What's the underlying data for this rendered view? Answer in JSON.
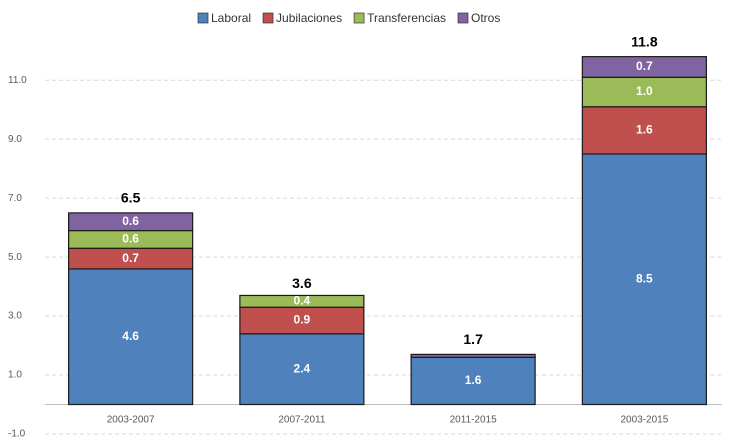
{
  "chart_data": {
    "type": "stacked-bar",
    "categories": [
      "2003-2007",
      "2007-2011",
      "2011-2015",
      "2003-2015"
    ],
    "series": [
      {
        "name": "Laboral",
        "color": "#4f81bd",
        "values": [
          4.6,
          2.4,
          1.6,
          8.5
        ],
        "value_labels": [
          "4.6",
          "2.4",
          "1.6",
          "8.5"
        ]
      },
      {
        "name": "Jubilaciones",
        "color": "#c0504d",
        "values": [
          0.7,
          0.9,
          0,
          1.6
        ],
        "value_labels": [
          "0.7",
          "0.9",
          null,
          "1.6"
        ]
      },
      {
        "name": "Transferencias",
        "color": "#9bbb59",
        "values": [
          0.6,
          0.4,
          0,
          1.0
        ],
        "value_labels": [
          "0.6",
          "0.4",
          null,
          "1.0"
        ]
      },
      {
        "name": "Otros",
        "color": "#8064a2",
        "values": [
          0.6,
          0,
          0.1,
          0.7
        ],
        "value_labels": [
          "0.6",
          null,
          null,
          "0.7"
        ]
      }
    ],
    "totals": [
      6.5,
      3.6,
      1.7,
      11.8
    ],
    "ylim": [
      -1,
      12.5
    ],
    "yticks": [
      {
        "value": -1,
        "label": "-1.0"
      },
      {
        "value": 1,
        "label": "1.0"
      },
      {
        "value": 3,
        "label": "3.0"
      },
      {
        "value": 5,
        "label": "5.0"
      },
      {
        "value": 7,
        "label": "7.0"
      },
      {
        "value": 9,
        "label": "9.0"
      },
      {
        "value": 11,
        "label": "11.0"
      }
    ],
    "grid": true,
    "legend": "top"
  }
}
